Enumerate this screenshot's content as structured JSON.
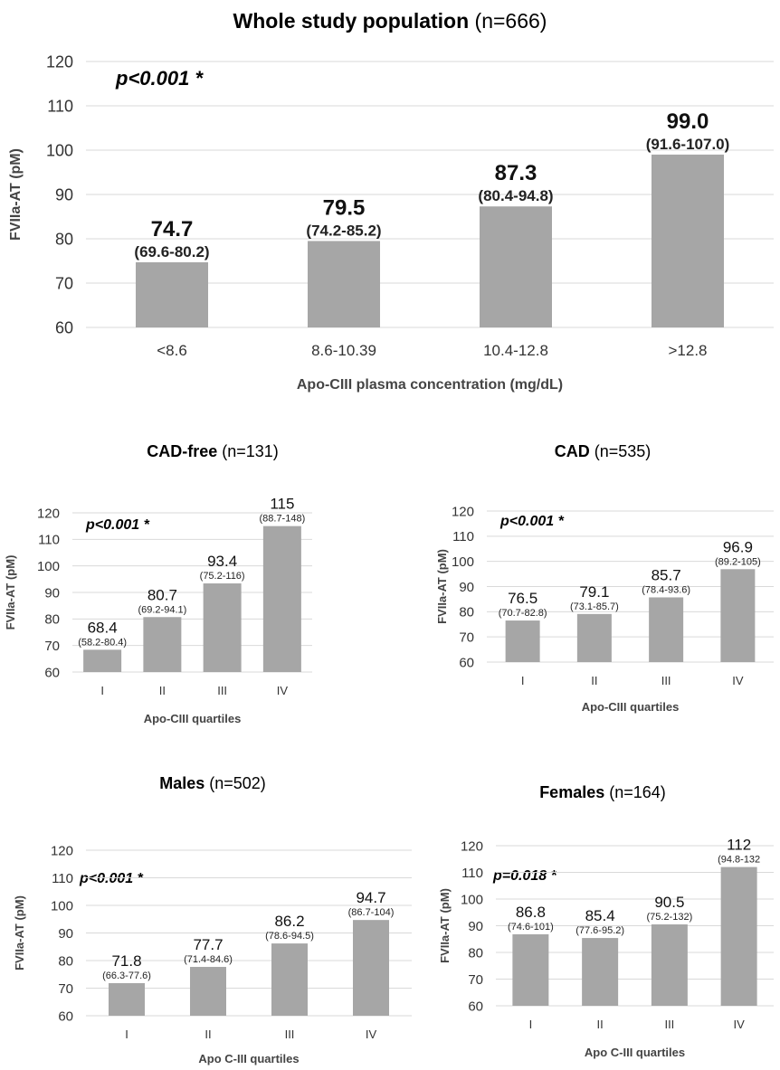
{
  "chart_data": [
    {
      "type": "bar",
      "title": "Whole study population",
      "title_n": "(n=666)",
      "pvalue": "p<0.001 *",
      "ylabel": "FVIIa-AT (pM)",
      "xlabel": "Apo-CIII plasma concentration (mg/dL)",
      "categories": [
        "<8.6",
        "8.6-10.39",
        "10.4-12.8",
        ">12.8"
      ],
      "values": [
        74.7,
        79.5,
        87.3,
        99.0
      ],
      "value_labels": [
        "74.7",
        "79.5",
        "87.3",
        "99.0"
      ],
      "ci_labels": [
        "(69.6-80.2)",
        "(74.2-85.2)",
        "(80.4-94.8)",
        "(91.6-107.0)"
      ],
      "ylim": [
        60,
        120
      ],
      "yticks": [
        60,
        70,
        80,
        90,
        100,
        110,
        120
      ],
      "grid": true,
      "bar_color": "#a6a6a6"
    },
    {
      "type": "bar",
      "title": "CAD-free",
      "title_n": "(n=131)",
      "pvalue": "p<0.001 *",
      "ylabel": "FVIIa-AT (pM)",
      "xlabel": "Apo-CIII quartiles",
      "categories": [
        "I",
        "II",
        "III",
        "IV"
      ],
      "values": [
        68.4,
        80.7,
        93.4,
        115
      ],
      "value_labels": [
        "68.4",
        "80.7",
        "93.4",
        "115"
      ],
      "ci_labels": [
        "(58.2-80.4)",
        "(69.2-94.1)",
        "(75.2-116)",
        "(88.7-148)"
      ],
      "ylim": [
        60,
        120
      ],
      "yticks": [
        60,
        70,
        80,
        90,
        100,
        110,
        120
      ],
      "grid": true,
      "bar_color": "#a6a6a6"
    },
    {
      "type": "bar",
      "title": "CAD",
      "title_n": "(n=535)",
      "pvalue": "p<0.001 *",
      "ylabel": "FVIIa-AT (pM)",
      "xlabel": "Apo-CIII quartiles",
      "categories": [
        "I",
        "II",
        "III",
        "IV"
      ],
      "values": [
        76.5,
        79.1,
        85.7,
        96.9
      ],
      "value_labels": [
        "76.5",
        "79.1",
        "85.7",
        "96.9"
      ],
      "ci_labels": [
        "(70.7-82.8)",
        "(73.1-85.7)",
        "(78.4-93.6)",
        "(89.2-105)"
      ],
      "ylim": [
        60,
        120
      ],
      "yticks": [
        60,
        70,
        80,
        90,
        100,
        110,
        120
      ],
      "grid": true,
      "bar_color": "#a6a6a6"
    },
    {
      "type": "bar",
      "title": "Males",
      "title_n": "(n=502)",
      "pvalue": "p<0.001 *",
      "ylabel": "FVIIa-AT (pM)",
      "xlabel": "Apo C-III quartiles",
      "categories": [
        "I",
        "II",
        "III",
        "IV"
      ],
      "values": [
        71.8,
        77.7,
        86.2,
        94.7
      ],
      "value_labels": [
        "71.8",
        "77.7",
        "86.2",
        "94.7"
      ],
      "ci_labels": [
        "(66.3-77.6)",
        "(71.4-84.6)",
        "(78.6-94.5)",
        "(86.7-104)"
      ],
      "ylim": [
        60,
        120
      ],
      "yticks": [
        60,
        70,
        80,
        90,
        100,
        110,
        120
      ],
      "grid": true,
      "bar_color": "#a6a6a6"
    },
    {
      "type": "bar",
      "title": "Females",
      "title_n": "(n=164)",
      "pvalue": "p=0.018 *",
      "ylabel": "FVIIa-AT (pM)",
      "xlabel": "Apo C-III quartiles",
      "categories": [
        "I",
        "II",
        "III",
        "IV"
      ],
      "values": [
        86.8,
        85.4,
        90.5,
        112
      ],
      "value_labels": [
        "86.8",
        "85.4",
        "90.5",
        "112"
      ],
      "ci_labels": [
        "(74.6-101)",
        "(77.6-95.2)",
        "(75.2-132)",
        "(94.8-132"
      ],
      "ylim": [
        60,
        120
      ],
      "yticks": [
        60,
        70,
        80,
        90,
        100,
        110,
        120
      ],
      "grid": true,
      "bar_color": "#a6a6a6"
    }
  ]
}
